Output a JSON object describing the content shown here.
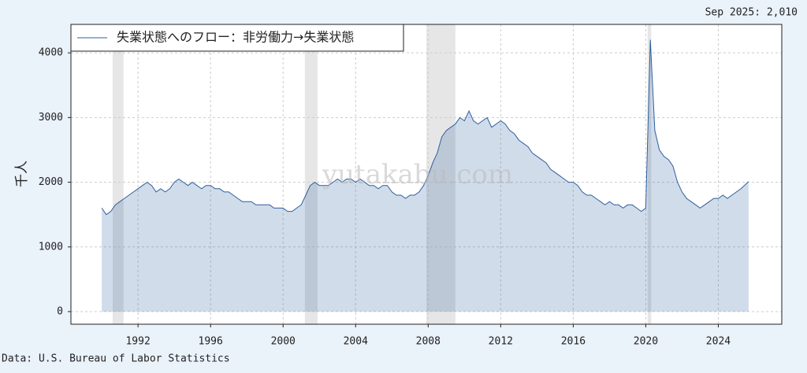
{
  "chart_data": {
    "type": "area_line",
    "title": "失業状態へのフロー：非労働力→失業状態",
    "ylabel": "千人",
    "annotation": "Sep 2025: 2,010",
    "source": "Data: U.S. Bureau of Labor Statistics",
    "watermark": "yutakabu.com",
    "xlim": [
      1988.3,
      2027.5
    ],
    "ylim": [
      -195,
      4440
    ],
    "xticks": [
      1992,
      1996,
      2000,
      2004,
      2008,
      2012,
      2016,
      2020,
      2024
    ],
    "yticks": [
      0,
      1000,
      2000,
      3000,
      4000
    ],
    "grid": true,
    "legend": "upper left",
    "recessions": [
      [
        1990.6,
        1991.2
      ],
      [
        2001.2,
        2001.9
      ],
      [
        2007.9,
        2009.5
      ],
      [
        2020.1,
        2020.3
      ]
    ],
    "x": [
      1990,
      1990.25,
      1990.5,
      1990.75,
      1991,
      1991.25,
      1991.5,
      1991.75,
      1992,
      1992.25,
      1992.5,
      1992.75,
      1993,
      1993.25,
      1993.5,
      1993.75,
      1994,
      1994.25,
      1994.5,
      1994.75,
      1995,
      1995.25,
      1995.5,
      1995.75,
      1996,
      1996.25,
      1996.5,
      1996.75,
      1997,
      1997.25,
      1997.5,
      1997.75,
      1998,
      1998.25,
      1998.5,
      1998.75,
      1999,
      1999.25,
      1999.5,
      1999.75,
      2000,
      2000.25,
      2000.5,
      2000.75,
      2001,
      2001.25,
      2001.5,
      2001.75,
      2002,
      2002.25,
      2002.5,
      2002.75,
      2003,
      2003.25,
      2003.5,
      2003.75,
      2004,
      2004.25,
      2004.5,
      2004.75,
      2005,
      2005.25,
      2005.5,
      2005.75,
      2006,
      2006.25,
      2006.5,
      2006.75,
      2007,
      2007.25,
      2007.5,
      2007.75,
      2008,
      2008.25,
      2008.5,
      2008.75,
      2009,
      2009.25,
      2009.5,
      2009.75,
      2010,
      2010.25,
      2010.5,
      2010.75,
      2011,
      2011.25,
      2011.5,
      2011.75,
      2012,
      2012.25,
      2012.5,
      2012.75,
      2013,
      2013.25,
      2013.5,
      2013.75,
      2014,
      2014.25,
      2014.5,
      2014.75,
      2015,
      2015.25,
      2015.5,
      2015.75,
      2016,
      2016.25,
      2016.5,
      2016.75,
      2017,
      2017.25,
      2017.5,
      2017.75,
      2018,
      2018.25,
      2018.5,
      2018.75,
      2019,
      2019.25,
      2019.5,
      2019.75,
      2020,
      2020.25,
      2020.5,
      2020.75,
      2021,
      2021.25,
      2021.5,
      2021.75,
      2022,
      2022.25,
      2022.5,
      2022.75,
      2023,
      2023.25,
      2023.5,
      2023.75,
      2024,
      2024.25,
      2024.5,
      2024.75,
      2025,
      2025.25,
      2025.67
    ],
    "series": [
      {
        "name": "失業状態へのフロー：非労働力→失業状態",
        "color": "#2c5f9e",
        "values": [
          1600,
          1500,
          1550,
          1650,
          1700,
          1750,
          1800,
          1850,
          1900,
          1950,
          2000,
          1950,
          1850,
          1900,
          1850,
          1900,
          2000,
          2050,
          2000,
          1950,
          2000,
          1950,
          1900,
          1950,
          1950,
          1900,
          1900,
          1850,
          1850,
          1800,
          1750,
          1700,
          1700,
          1700,
          1650,
          1650,
          1650,
          1650,
          1600,
          1600,
          1600,
          1550,
          1550,
          1600,
          1650,
          1800,
          1950,
          2000,
          1950,
          1950,
          1950,
          2000,
          2050,
          2000,
          2050,
          2050,
          2000,
          2050,
          2000,
          1950,
          1950,
          1900,
          1950,
          1950,
          1850,
          1800,
          1800,
          1750,
          1800,
          1800,
          1850,
          1950,
          2100,
          2300,
          2450,
          2700,
          2800,
          2850,
          2900,
          3000,
          2950,
          3100,
          2950,
          2900,
          2950,
          3000,
          2850,
          2900,
          2950,
          2900,
          2800,
          2750,
          2650,
          2600,
          2550,
          2450,
          2400,
          2350,
          2300,
          2200,
          2150,
          2100,
          2050,
          2000,
          2000,
          1950,
          1850,
          1800,
          1800,
          1750,
          1700,
          1650,
          1700,
          1650,
          1650,
          1600,
          1650,
          1650,
          1600,
          1550,
          1600,
          4200,
          2800,
          2500,
          2400,
          2350,
          2250,
          2000,
          1850,
          1750,
          1700,
          1650,
          1600,
          1650,
          1700,
          1750,
          1750,
          1800,
          1750,
          1800,
          1850,
          1900,
          2010
        ]
      }
    ]
  }
}
